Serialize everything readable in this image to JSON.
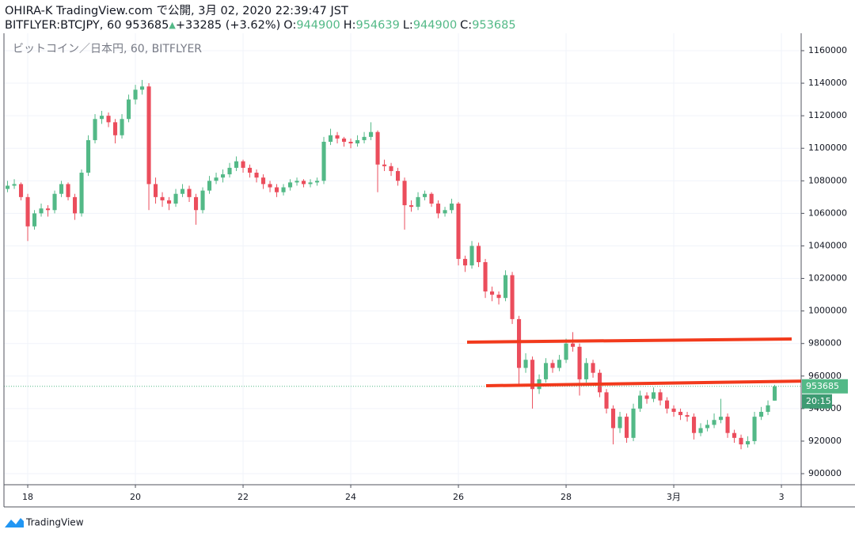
{
  "header": {
    "title": "OHIRA-K TradingView.com で公開, 3月 02, 2020 22:39:47 JST",
    "symbol": "BITFLYER:BTCJPY, 60 953685",
    "arrow": "▲",
    "change": "+33285 (+3.62%)",
    "o_label": "O:",
    "o": "944900",
    "h_label": "H:",
    "h": "954639",
    "l_label": "L:",
    "l": "944900",
    "c_label": "C:",
    "c": "953685"
  },
  "footer": {
    "brand": "TradingView"
  },
  "chart_data": {
    "type": "candlestick",
    "legend": "ビットコイン／日本円, 60, BITFLYER",
    "up_color": "#53b987",
    "down_color": "#eb4d5c",
    "countdown": "20:15",
    "grid": true,
    "ylim": [
      893200,
      1170700
    ],
    "yticks": [
      900000,
      920000,
      940000,
      960000,
      980000,
      1000000,
      1020000,
      1040000,
      1060000,
      1080000,
      1100000,
      1120000,
      1140000,
      1160000
    ],
    "xlim": [
      -10.6,
      344.8
    ],
    "xticks": [
      {
        "value": 0,
        "label": "18"
      },
      {
        "value": 48,
        "label": "20"
      },
      {
        "value": 96,
        "label": "22"
      },
      {
        "value": 144,
        "label": "24"
      },
      {
        "value": 192,
        "label": "26"
      },
      {
        "value": 240,
        "label": "28"
      },
      {
        "value": 288,
        "label": "3月"
      },
      {
        "value": 336,
        "label": "3"
      }
    ],
    "x": [
      -9,
      -6,
      -3,
      0,
      3,
      6,
      9,
      12,
      15,
      18,
      21,
      24,
      27,
      30,
      33,
      36,
      39,
      42,
      45,
      48,
      51,
      54,
      57,
      60,
      63,
      66,
      69,
      72,
      75,
      78,
      81,
      84,
      87,
      90,
      93,
      96,
      99,
      102,
      105,
      108,
      111,
      114,
      117,
      120,
      123,
      126,
      129,
      132,
      135,
      138,
      141,
      144,
      147,
      150,
      153,
      156,
      159,
      162,
      165,
      168,
      171,
      174,
      177,
      180,
      183,
      186,
      189,
      192,
      195,
      198,
      201,
      204,
      207,
      210,
      213,
      216,
      219,
      222,
      225,
      228,
      231,
      234,
      237,
      240,
      243,
      246,
      249,
      252,
      255,
      258,
      261,
      264,
      267,
      270,
      273,
      276,
      279,
      282,
      285,
      288,
      291,
      294,
      297,
      300,
      303,
      306,
      309,
      312,
      315,
      318,
      321,
      324,
      327,
      330,
      333
    ],
    "ohlc": [
      [
        1075000,
        1080000,
        1073000,
        1077000
      ],
      [
        1077000,
        1081000,
        1075000,
        1078000
      ],
      [
        1078000,
        1079000,
        1068000,
        1070000
      ],
      [
        1070000,
        1072000,
        1043000,
        1052000
      ],
      [
        1052000,
        1062000,
        1050000,
        1060000
      ],
      [
        1060000,
        1066000,
        1058000,
        1063000
      ],
      [
        1063000,
        1065000,
        1058000,
        1062000
      ],
      [
        1062000,
        1074000,
        1060000,
        1072000
      ],
      [
        1072000,
        1080000,
        1070000,
        1078000
      ],
      [
        1078000,
        1079000,
        1068000,
        1070000
      ],
      [
        1070000,
        1072000,
        1056000,
        1060000
      ],
      [
        1060000,
        1087000,
        1058000,
        1085000
      ],
      [
        1085000,
        1108000,
        1083000,
        1105000
      ],
      [
        1105000,
        1121000,
        1103000,
        1118000
      ],
      [
        1118000,
        1123000,
        1115000,
        1120000
      ],
      [
        1120000,
        1122000,
        1113000,
        1116000
      ],
      [
        1116000,
        1118000,
        1103000,
        1108000
      ],
      [
        1108000,
        1121000,
        1106000,
        1118000
      ],
      [
        1118000,
        1133000,
        1116000,
        1130000
      ],
      [
        1130000,
        1139000,
        1127000,
        1136000
      ],
      [
        1136000,
        1142000,
        1133000,
        1138000
      ],
      [
        1138000,
        1140000,
        1062000,
        1078000
      ],
      [
        1078000,
        1082000,
        1066000,
        1070000
      ],
      [
        1070000,
        1073000,
        1064000,
        1068000
      ],
      [
        1068000,
        1070000,
        1062000,
        1066000
      ],
      [
        1066000,
        1075000,
        1064000,
        1072000
      ],
      [
        1072000,
        1078000,
        1070000,
        1075000
      ],
      [
        1075000,
        1077000,
        1067000,
        1070000
      ],
      [
        1070000,
        1072000,
        1053000,
        1062000
      ],
      [
        1062000,
        1076000,
        1060000,
        1074000
      ],
      [
        1074000,
        1083000,
        1072000,
        1080000
      ],
      [
        1080000,
        1085000,
        1078000,
        1082000
      ],
      [
        1082000,
        1087000,
        1079000,
        1084000
      ],
      [
        1084000,
        1091000,
        1082000,
        1088000
      ],
      [
        1088000,
        1095000,
        1086000,
        1092000
      ],
      [
        1092000,
        1093000,
        1085000,
        1088000
      ],
      [
        1088000,
        1090000,
        1082000,
        1085000
      ],
      [
        1085000,
        1087000,
        1079000,
        1082000
      ],
      [
        1082000,
        1084000,
        1075000,
        1078000
      ],
      [
        1078000,
        1080000,
        1073000,
        1076000
      ],
      [
        1076000,
        1078000,
        1070000,
        1073000
      ],
      [
        1073000,
        1078000,
        1071000,
        1076000
      ],
      [
        1076000,
        1081000,
        1074000,
        1079000
      ],
      [
        1079000,
        1082000,
        1077000,
        1080000
      ],
      [
        1080000,
        1081000,
        1076000,
        1078000
      ],
      [
        1078000,
        1081000,
        1076000,
        1079000
      ],
      [
        1079000,
        1082000,
        1077000,
        1080000
      ],
      [
        1080000,
        1107000,
        1078000,
        1104000
      ],
      [
        1104000,
        1112000,
        1102000,
        1108000
      ],
      [
        1108000,
        1110000,
        1103000,
        1106000
      ],
      [
        1106000,
        1107000,
        1101000,
        1104000
      ],
      [
        1104000,
        1106000,
        1100000,
        1103000
      ],
      [
        1103000,
        1108000,
        1101000,
        1105000
      ],
      [
        1105000,
        1110000,
        1103000,
        1107000
      ],
      [
        1107000,
        1116000,
        1105000,
        1110000
      ],
      [
        1110000,
        1111000,
        1073000,
        1090000
      ],
      [
        1090000,
        1093000,
        1086000,
        1089000
      ],
      [
        1089000,
        1091000,
        1083000,
        1086000
      ],
      [
        1086000,
        1088000,
        1077000,
        1080000
      ],
      [
        1080000,
        1082000,
        1050000,
        1065000
      ],
      [
        1065000,
        1068000,
        1061000,
        1064000
      ],
      [
        1064000,
        1073000,
        1062000,
        1070000
      ],
      [
        1070000,
        1074000,
        1068000,
        1072000
      ],
      [
        1072000,
        1073000,
        1064000,
        1066000
      ],
      [
        1066000,
        1068000,
        1057000,
        1060000
      ],
      [
        1060000,
        1064000,
        1058000,
        1062000
      ],
      [
        1062000,
        1069000,
        1060000,
        1066000
      ],
      [
        1066000,
        1067000,
        1028000,
        1032000
      ],
      [
        1032000,
        1034000,
        1024000,
        1028000
      ],
      [
        1028000,
        1043000,
        1026000,
        1040000
      ],
      [
        1040000,
        1042000,
        1027000,
        1030000
      ],
      [
        1030000,
        1032000,
        1008000,
        1012000
      ],
      [
        1012000,
        1015000,
        1006000,
        1010000
      ],
      [
        1010000,
        1012000,
        1004000,
        1008000
      ],
      [
        1008000,
        1025000,
        1006000,
        1022000
      ],
      [
        1022000,
        1024000,
        992000,
        995000
      ],
      [
        995000,
        997000,
        955000,
        965000
      ],
      [
        965000,
        974000,
        962000,
        970000
      ],
      [
        970000,
        972000,
        940000,
        952000
      ],
      [
        952000,
        961000,
        949000,
        958000
      ],
      [
        958000,
        971000,
        956000,
        968000
      ],
      [
        968000,
        970000,
        962000,
        965000
      ],
      [
        965000,
        973000,
        963000,
        970000
      ],
      [
        970000,
        983000,
        968000,
        980000
      ],
      [
        980000,
        987000,
        975000,
        978000
      ],
      [
        978000,
        980000,
        948000,
        958000
      ],
      [
        958000,
        971000,
        956000,
        968000
      ],
      [
        968000,
        970000,
        959000,
        962000
      ],
      [
        962000,
        964000,
        947000,
        950000
      ],
      [
        950000,
        952000,
        937000,
        940000
      ],
      [
        940000,
        942000,
        918000,
        928000
      ],
      [
        928000,
        938000,
        925000,
        935000
      ],
      [
        935000,
        937000,
        919000,
        922000
      ],
      [
        922000,
        943000,
        920000,
        940000
      ],
      [
        940000,
        951000,
        938000,
        948000
      ],
      [
        948000,
        950000,
        943000,
        946000
      ],
      [
        946000,
        953000,
        944000,
        950000
      ],
      [
        950000,
        952000,
        942000,
        945000
      ],
      [
        945000,
        947000,
        937000,
        940000
      ],
      [
        940000,
        942000,
        935000,
        938000
      ],
      [
        938000,
        940000,
        933000,
        936000
      ],
      [
        936000,
        938000,
        932000,
        935000
      ],
      [
        935000,
        937000,
        921000,
        925000
      ],
      [
        925000,
        931000,
        923000,
        928000
      ],
      [
        928000,
        933000,
        926000,
        930000
      ],
      [
        930000,
        937000,
        928000,
        933000
      ],
      [
        933000,
        946000,
        931000,
        935000
      ],
      [
        935000,
        937000,
        922000,
        925000
      ],
      [
        925000,
        927000,
        919000,
        922000
      ],
      [
        922000,
        924000,
        915000,
        918000
      ],
      [
        918000,
        923000,
        916000,
        920000
      ],
      [
        920000,
        938000,
        918000,
        935000
      ],
      [
        935000,
        941000,
        933000,
        938000
      ],
      [
        938000,
        945000,
        936000,
        942000
      ],
      [
        944900,
        954639,
        944900,
        953685
      ]
    ]
  }
}
